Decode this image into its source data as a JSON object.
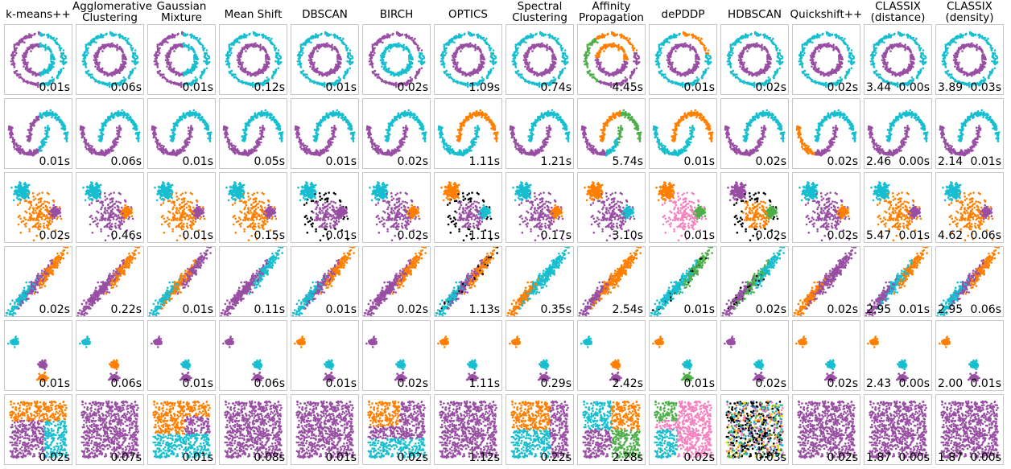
{
  "chart_data": {
    "type": "scatter",
    "title": "",
    "colors": {
      "purple": "#984ea3",
      "cyan": "#17becf",
      "orange": "#ff7f00",
      "green": "#4daf4a",
      "pink": "#f781bf",
      "black": "#000000",
      "yellow": "#dede00",
      "blue": "#377eb8"
    },
    "algorithms": [
      "k-means++",
      "Agglomerative\nClustering",
      "Gaussian\nMixture",
      "Mean Shift",
      "DBSCAN",
      "BIRCH",
      "OPTICS",
      "Spectral\nClustering",
      "Affinity\nPropagation",
      "dePDDP",
      "HDBSCAN",
      "Quickshift++",
      "CLASSIX\n(distance)",
      "CLASSIX\n(density)"
    ],
    "datasets": [
      "noisy_circles",
      "noisy_moons",
      "varied",
      "aniso",
      "blobs",
      "no_structure"
    ],
    "times": [
      [
        "0.01s",
        "0.06s",
        "0.01s",
        "0.12s",
        "0.01s",
        "0.02s",
        "1.09s",
        "0.74s",
        "4.45s",
        "0.01s",
        "0.02s",
        "0.02s",
        "0.00s",
        "0.03s"
      ],
      [
        "0.01s",
        "0.06s",
        "0.01s",
        "0.05s",
        "0.01s",
        "0.02s",
        "1.11s",
        "1.21s",
        "5.74s",
        "0.01s",
        "0.02s",
        "0.02s",
        "0.00s",
        "0.01s"
      ],
      [
        "0.02s",
        "0.46s",
        "0.01s",
        "0.15s",
        "0.01s",
        "0.02s",
        "1.11s",
        "0.17s",
        "3.10s",
        "0.01s",
        "0.02s",
        "0.02s",
        "0.01s",
        "0.06s"
      ],
      [
        "0.02s",
        "0.22s",
        "0.01s",
        "0.11s",
        "0.01s",
        "0.02s",
        "1.13s",
        "0.35s",
        "2.54s",
        "0.01s",
        "0.02s",
        "0.02s",
        "0.01s",
        "0.06s"
      ],
      [
        "0.01s",
        "0.06s",
        "0.01s",
        "0.06s",
        "0.01s",
        "0.02s",
        "1.11s",
        "0.29s",
        "2.42s",
        "0.01s",
        "0.02s",
        "0.02s",
        "0.00s",
        "0.01s"
      ],
      [
        "0.02s",
        "0.07s",
        "0.01s",
        "0.08s",
        "0.01s",
        "0.02s",
        "1.12s",
        "0.22s",
        "2.28s",
        "0.02s",
        "0.03s",
        "0.02s",
        "0.00s",
        "0.00s"
      ]
    ],
    "classix_extra": {
      "distance": [
        "3.44",
        "2.46",
        "5.47",
        "2.95",
        "2.43",
        "1.87"
      ],
      "density": [
        "3.89",
        "2.14",
        "4.62",
        "2.95",
        "2.00",
        "1.87"
      ]
    }
  }
}
